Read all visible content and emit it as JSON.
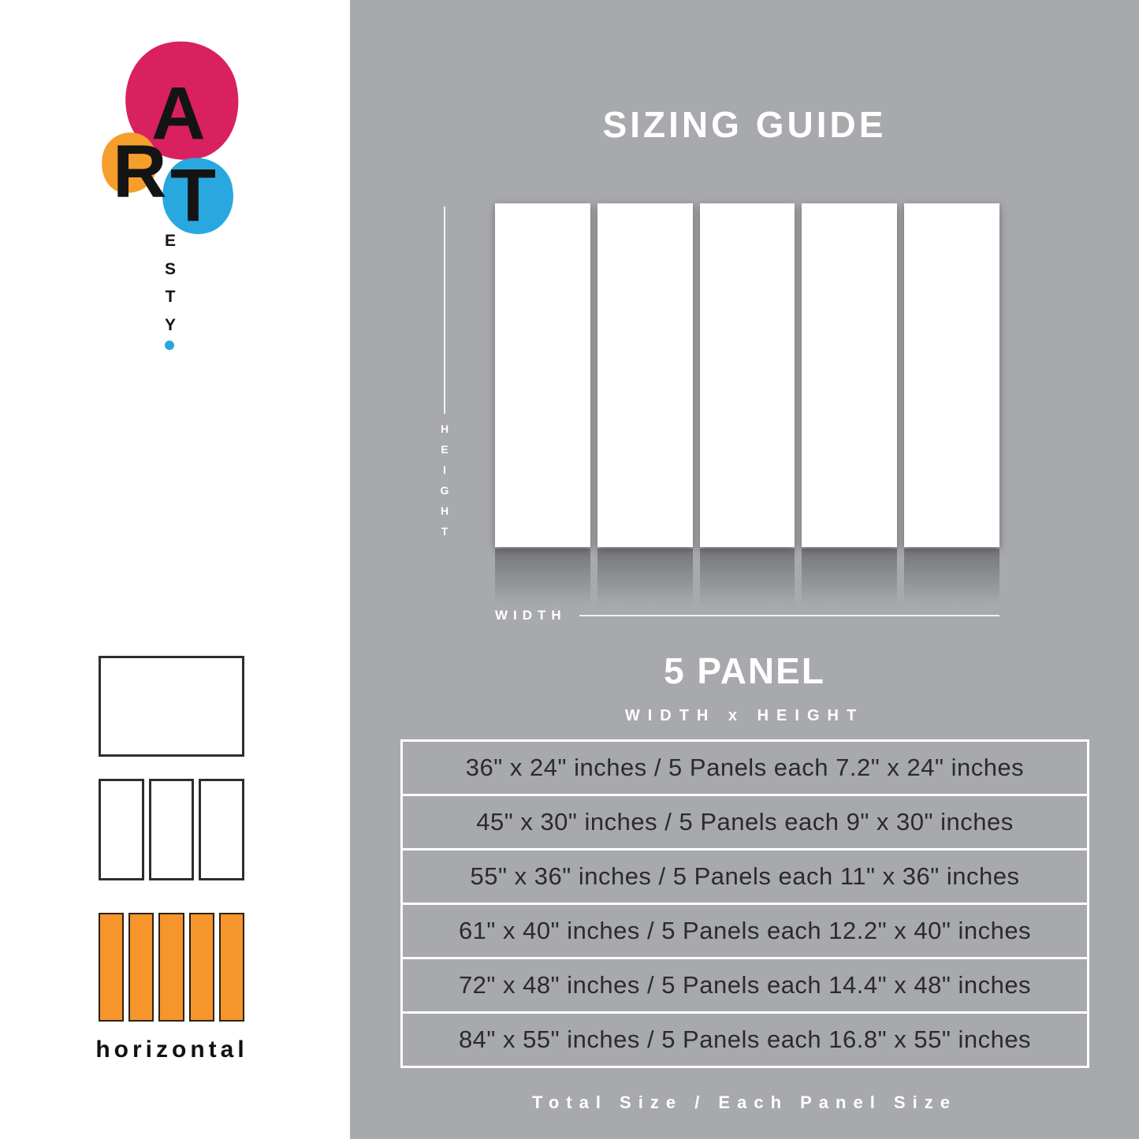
{
  "brand": {
    "letters": [
      "A",
      "R",
      "T"
    ],
    "vertical_letters": [
      "E",
      "S",
      "T",
      "Y"
    ]
  },
  "colors": {
    "background_gray": "#a7a9ac",
    "logo_pink": "#d9215f",
    "logo_orange": "#f59e2c",
    "logo_blue": "#29a8e0",
    "swatch_orange": "#f5952b",
    "table_text": "#2b2b2b"
  },
  "guide": {
    "title": "SIZING GUIDE",
    "height_letters": [
      "H",
      "E",
      "I",
      "G",
      "H",
      "T"
    ],
    "width_label": "WIDTH",
    "panel_heading": "5 PANEL",
    "panel_subheading": "WIDTH x HEIGHT",
    "rows": [
      "36\" x 24\" inches / 5 Panels each 7.2\" x 24\" inches",
      "45\" x 30\" inches / 5 Panels each 9\" x 30\" inches",
      "55\" x 36\" inches / 5 Panels each 11\" x 36\" inches",
      "61\" x 40\" inches / 5 Panels each 12.2\" x 40\" inches",
      "72\" x 48\" inches / 5 Panels each 14.4\" x 48\" inches",
      "84\" x 55\" inches / 5 Panels each 16.8\" x 55\" inches"
    ],
    "footer": "Total Size / Each Panel Size"
  },
  "orientation": {
    "label": "horizontal"
  }
}
